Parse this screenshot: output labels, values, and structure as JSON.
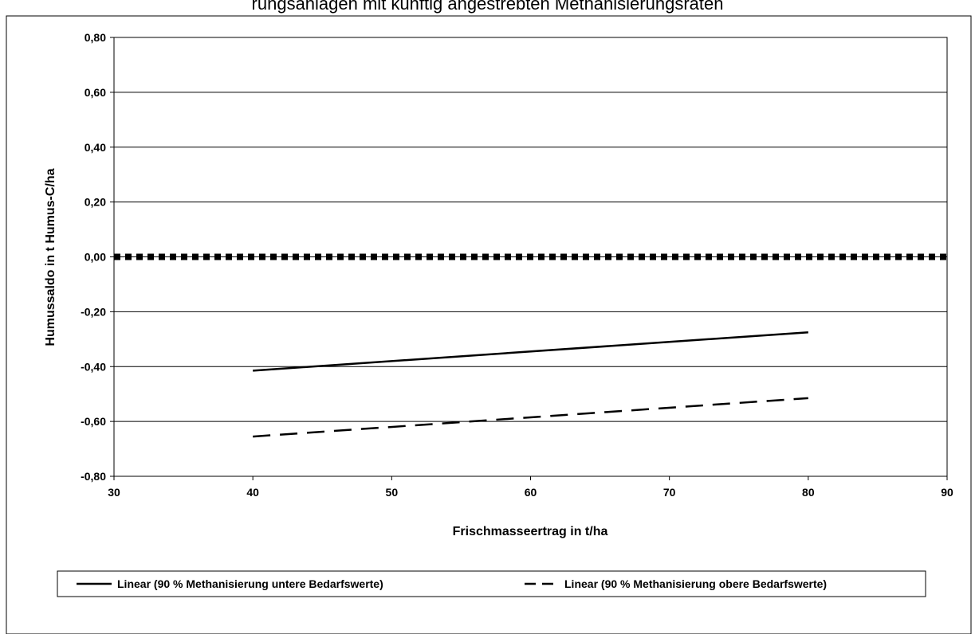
{
  "chart_data": {
    "type": "line",
    "title": "rungsanlagen mit künftig angestrebten Methanisierungsraten",
    "xlabel": "Frischmasseertrag in t/ha",
    "ylabel": "Humussaldo in t Humus-C/ha",
    "xlim": [
      30,
      90
    ],
    "ylim": [
      -0.8,
      0.8
    ],
    "x_ticks": [
      "30",
      "40",
      "50",
      "60",
      "70",
      "80",
      "90"
    ],
    "y_ticks": [
      "0,80",
      "0,60",
      "0,40",
      "0,20",
      "0,00",
      "-0,20",
      "-0,40",
      "-0,60",
      "-0,80"
    ],
    "grid": true,
    "legend_position": "bottom",
    "series": [
      {
        "name": "Linear (90 % Methanisierung untere Bedarfswerte)",
        "style": "solid",
        "x": [
          40,
          80
        ],
        "y": [
          -0.415,
          -0.275
        ]
      },
      {
        "name": "Linear (90 % Methanisierung obere Bedarfswerte)",
        "style": "dashed",
        "x": [
          40,
          80
        ],
        "y": [
          -0.655,
          -0.515
        ]
      }
    ],
    "reference_line": {
      "y": 0.0,
      "style": "dotted"
    }
  },
  "colors": {
    "line": "#000000",
    "grid": "#000000",
    "background": "#ffffff"
  }
}
